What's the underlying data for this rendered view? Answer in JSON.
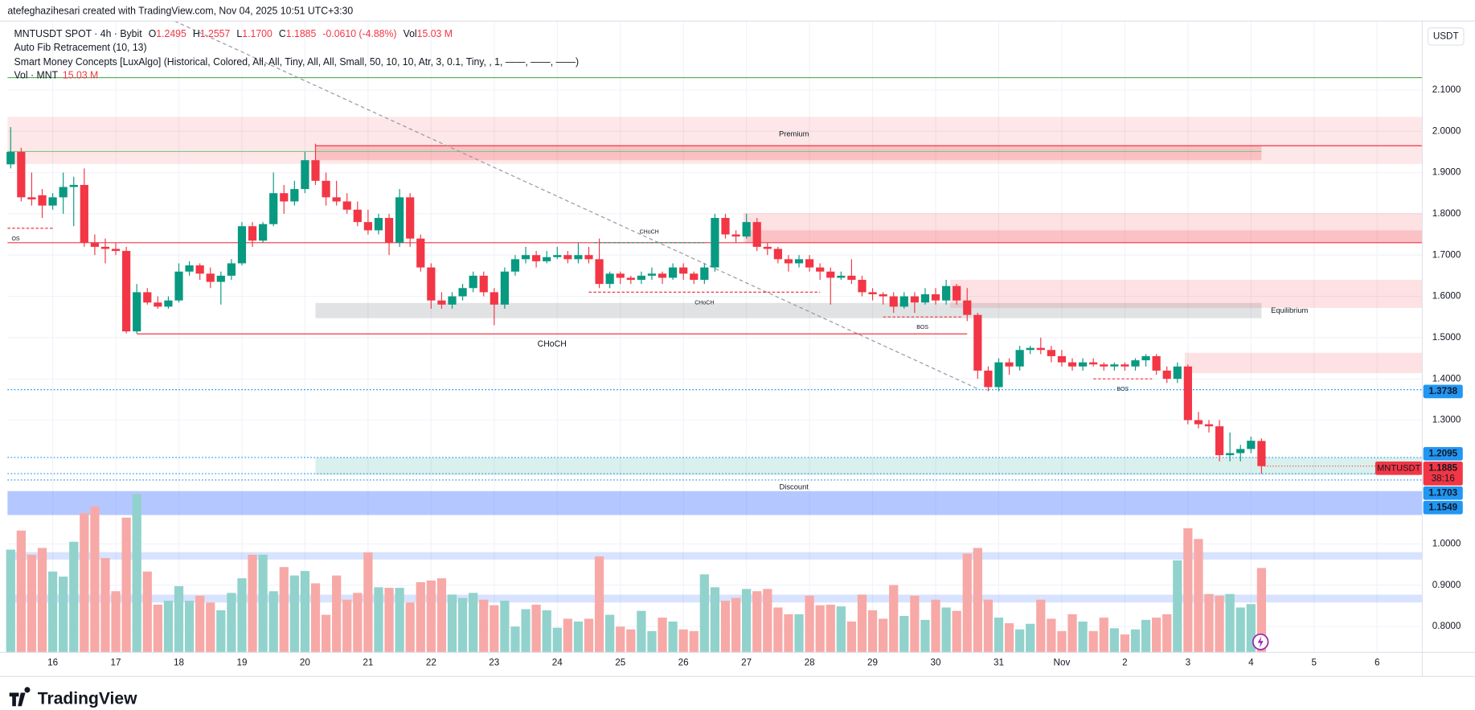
{
  "header": {
    "credit": "atefeghazihesari created with TradingView.com, Nov 04, 2025 10:51 UTC+3:30",
    "symbol": "MNTUSDT SPOT · 4h · Bybit",
    "ohlc": [
      {
        "key": "O",
        "value": "1.2495"
      },
      {
        "key": "H",
        "value": "1.2557"
      },
      {
        "key": "L",
        "value": "1.1700"
      },
      {
        "key": "C",
        "value": "1.1885"
      }
    ],
    "change": "-0.0610 (-4.88%)",
    "vol_key": "Vol",
    "vol_value": "15.03 M",
    "indicators": [
      "Auto Fib Retracement (10, 13)",
      "Smart Money Concepts [LuxAlgo] (Historical, Colored, All, All, Tiny, All, All, Small, 50, 10, 10, Atr, 3, 0.1, Tiny, , 1, ——, ——, ——)"
    ],
    "vol_line": "Vol · MNT",
    "vol_line_value": "15.03 M",
    "currency": "USDT",
    "brand": "TradingView"
  },
  "chart_data": {
    "type": "candlestick",
    "up_color": "#089981",
    "down_color": "#f23645",
    "vol_up_color": "#92d2cc",
    "vol_down_color": "#f7a9a7",
    "grid": true,
    "xlim": [
      -0.3,
      134.3
    ],
    "ylim": [
      0.737,
      2.267
    ],
    "xticks": [
      {
        "value": 4,
        "label": "16"
      },
      {
        "value": 10,
        "label": "17"
      },
      {
        "value": 16,
        "label": "18"
      },
      {
        "value": 22,
        "label": "19"
      },
      {
        "value": 28,
        "label": "20"
      },
      {
        "value": 34,
        "label": "21"
      },
      {
        "value": 40,
        "label": "22"
      },
      {
        "value": 46,
        "label": "23"
      },
      {
        "value": 52,
        "label": "24"
      },
      {
        "value": 58,
        "label": "25"
      },
      {
        "value": 64,
        "label": "26"
      },
      {
        "value": 70,
        "label": "27"
      },
      {
        "value": 76,
        "label": "28"
      },
      {
        "value": 82,
        "label": "29"
      },
      {
        "value": 88,
        "label": "30"
      },
      {
        "value": 94,
        "label": "31"
      },
      {
        "value": 100,
        "label": "Nov"
      },
      {
        "value": 106,
        "label": "2"
      },
      {
        "value": 112,
        "label": "3"
      },
      {
        "value": 118,
        "label": "4"
      },
      {
        "value": 124,
        "label": "5"
      },
      {
        "value": 130,
        "label": "6"
      }
    ],
    "yticks": [
      {
        "value": 0.8,
        "label": "0.8000"
      },
      {
        "value": 0.9,
        "label": "0.9000"
      },
      {
        "value": 1.0,
        "label": "1.0000"
      },
      {
        "value": 1.3,
        "label": "1.3000"
      },
      {
        "value": 1.4,
        "label": "1.4000"
      },
      {
        "value": 1.5,
        "label": "1.5000"
      },
      {
        "value": 1.6,
        "label": "1.6000"
      },
      {
        "value": 1.7,
        "label": "1.7000"
      },
      {
        "value": 1.8,
        "label": "1.8000"
      },
      {
        "value": 1.9,
        "label": "1.9000"
      },
      {
        "value": 2.0,
        "label": "2.0000"
      },
      {
        "value": 2.1,
        "label": "2.1000"
      }
    ],
    "candles": [
      [
        1.92,
        2.01,
        1.91,
        1.95
      ],
      [
        1.95,
        1.96,
        1.83,
        1.84
      ],
      [
        1.84,
        1.9,
        1.82,
        1.835
      ],
      [
        1.845,
        1.86,
        1.79,
        1.82
      ],
      [
        1.82,
        1.85,
        1.81,
        1.84
      ],
      [
        1.84,
        1.9,
        1.8,
        1.865
      ],
      [
        1.865,
        1.89,
        1.77,
        1.87
      ],
      [
        1.87,
        1.91,
        1.72,
        1.73
      ],
      [
        1.73,
        1.75,
        1.7,
        1.72
      ],
      [
        1.72,
        1.74,
        1.68,
        1.715
      ],
      [
        1.715,
        1.73,
        1.7,
        1.71
      ],
      [
        1.71,
        1.72,
        1.51,
        1.515
      ],
      [
        1.515,
        1.63,
        1.51,
        1.61
      ],
      [
        1.61,
        1.62,
        1.58,
        1.585
      ],
      [
        1.585,
        1.6,
        1.57,
        1.575
      ],
      [
        1.575,
        1.6,
        1.57,
        1.59
      ],
      [
        1.59,
        1.68,
        1.585,
        1.66
      ],
      [
        1.66,
        1.685,
        1.65,
        1.675
      ],
      [
        1.675,
        1.68,
        1.64,
        1.655
      ],
      [
        1.655,
        1.67,
        1.62,
        1.635
      ],
      [
        1.635,
        1.66,
        1.58,
        1.65
      ],
      [
        1.65,
        1.69,
        1.64,
        1.68
      ],
      [
        1.68,
        1.78,
        1.675,
        1.77
      ],
      [
        1.77,
        1.78,
        1.72,
        1.735
      ],
      [
        1.735,
        1.78,
        1.73,
        1.775
      ],
      [
        1.775,
        1.9,
        1.77,
        1.85
      ],
      [
        1.85,
        1.87,
        1.8,
        1.83
      ],
      [
        1.83,
        1.88,
        1.82,
        1.86
      ],
      [
        1.86,
        1.95,
        1.85,
        1.93
      ],
      [
        1.93,
        1.97,
        1.87,
        1.88
      ],
      [
        1.88,
        1.9,
        1.82,
        1.84
      ],
      [
        1.84,
        1.88,
        1.82,
        1.83
      ],
      [
        1.83,
        1.85,
        1.8,
        1.81
      ],
      [
        1.81,
        1.83,
        1.77,
        1.78
      ],
      [
        1.78,
        1.81,
        1.75,
        1.76
      ],
      [
        1.76,
        1.8,
        1.75,
        1.79
      ],
      [
        1.79,
        1.8,
        1.7,
        1.73
      ],
      [
        1.73,
        1.86,
        1.72,
        1.84
      ],
      [
        1.84,
        1.85,
        1.72,
        1.74
      ],
      [
        1.74,
        1.75,
        1.66,
        1.67
      ],
      [
        1.67,
        1.68,
        1.57,
        1.59
      ],
      [
        1.59,
        1.61,
        1.57,
        1.58
      ],
      [
        1.58,
        1.61,
        1.57,
        1.6
      ],
      [
        1.6,
        1.63,
        1.59,
        1.62
      ],
      [
        1.62,
        1.66,
        1.61,
        1.65
      ],
      [
        1.65,
        1.66,
        1.6,
        1.61
      ],
      [
        1.61,
        1.62,
        1.53,
        1.58
      ],
      [
        1.58,
        1.67,
        1.57,
        1.66
      ],
      [
        1.66,
        1.7,
        1.65,
        1.69
      ],
      [
        1.69,
        1.72,
        1.68,
        1.7
      ],
      [
        1.7,
        1.71,
        1.67,
        1.685
      ],
      [
        1.685,
        1.71,
        1.68,
        1.695
      ],
      [
        1.695,
        1.72,
        1.69,
        1.7
      ],
      [
        1.7,
        1.71,
        1.68,
        1.69
      ],
      [
        1.69,
        1.73,
        1.68,
        1.7
      ],
      [
        1.7,
        1.72,
        1.68,
        1.69
      ],
      [
        1.69,
        1.74,
        1.62,
        1.63
      ],
      [
        1.63,
        1.66,
        1.62,
        1.655
      ],
      [
        1.655,
        1.66,
        1.63,
        1.645
      ],
      [
        1.645,
        1.65,
        1.63,
        1.64
      ],
      [
        1.64,
        1.66,
        1.63,
        1.65
      ],
      [
        1.65,
        1.67,
        1.64,
        1.655
      ],
      [
        1.655,
        1.66,
        1.63,
        1.645
      ],
      [
        1.645,
        1.68,
        1.64,
        1.67
      ],
      [
        1.67,
        1.68,
        1.64,
        1.655
      ],
      [
        1.655,
        1.66,
        1.63,
        1.64
      ],
      [
        1.64,
        1.68,
        1.63,
        1.67
      ],
      [
        1.67,
        1.8,
        1.66,
        1.79
      ],
      [
        1.79,
        1.8,
        1.74,
        1.75
      ],
      [
        1.75,
        1.76,
        1.73,
        1.745
      ],
      [
        1.745,
        1.8,
        1.74,
        1.78
      ],
      [
        1.78,
        1.79,
        1.71,
        1.72
      ],
      [
        1.72,
        1.73,
        1.7,
        1.715
      ],
      [
        1.715,
        1.72,
        1.68,
        1.69
      ],
      [
        1.69,
        1.7,
        1.66,
        1.68
      ],
      [
        1.68,
        1.7,
        1.67,
        1.69
      ],
      [
        1.69,
        1.7,
        1.66,
        1.67
      ],
      [
        1.67,
        1.68,
        1.64,
        1.66
      ],
      [
        1.66,
        1.67,
        1.58,
        1.645
      ],
      [
        1.645,
        1.66,
        1.64,
        1.65
      ],
      [
        1.65,
        1.69,
        1.63,
        1.64
      ],
      [
        1.64,
        1.65,
        1.6,
        1.61
      ],
      [
        1.61,
        1.62,
        1.59,
        1.605
      ],
      [
        1.605,
        1.61,
        1.58,
        1.6
      ],
      [
        1.6,
        1.61,
        1.56,
        1.575
      ],
      [
        1.575,
        1.61,
        1.57,
        1.6
      ],
      [
        1.6,
        1.61,
        1.56,
        1.585
      ],
      [
        1.585,
        1.62,
        1.58,
        1.605
      ],
      [
        1.605,
        1.62,
        1.58,
        1.59
      ],
      [
        1.59,
        1.64,
        1.58,
        1.625
      ],
      [
        1.625,
        1.63,
        1.58,
        1.59
      ],
      [
        1.59,
        1.62,
        1.54,
        1.555
      ],
      [
        1.555,
        1.56,
        1.4,
        1.42
      ],
      [
        1.42,
        1.43,
        1.37,
        1.38
      ],
      [
        1.38,
        1.45,
        1.37,
        1.44
      ],
      [
        1.44,
        1.45,
        1.41,
        1.43
      ],
      [
        1.43,
        1.48,
        1.42,
        1.47
      ],
      [
        1.47,
        1.48,
        1.46,
        1.475
      ],
      [
        1.475,
        1.5,
        1.46,
        1.47
      ],
      [
        1.47,
        1.48,
        1.44,
        1.455
      ],
      [
        1.455,
        1.47,
        1.43,
        1.44
      ],
      [
        1.44,
        1.45,
        1.42,
        1.43
      ],
      [
        1.43,
        1.45,
        1.42,
        1.44
      ],
      [
        1.44,
        1.45,
        1.43,
        1.435
      ],
      [
        1.435,
        1.44,
        1.42,
        1.43
      ],
      [
        1.43,
        1.44,
        1.42,
        1.435
      ],
      [
        1.435,
        1.44,
        1.42,
        1.43
      ],
      [
        1.43,
        1.45,
        1.42,
        1.445
      ],
      [
        1.445,
        1.46,
        1.43,
        1.455
      ],
      [
        1.455,
        1.46,
        1.41,
        1.42
      ],
      [
        1.42,
        1.43,
        1.39,
        1.4
      ],
      [
        1.4,
        1.44,
        1.39,
        1.43
      ],
      [
        1.43,
        1.435,
        1.29,
        1.3
      ],
      [
        1.3,
        1.32,
        1.28,
        1.29
      ],
      [
        1.29,
        1.3,
        1.27,
        1.285
      ],
      [
        1.285,
        1.3,
        1.2,
        1.215
      ],
      [
        1.215,
        1.27,
        1.2,
        1.22
      ],
      [
        1.22,
        1.24,
        1.2,
        1.23
      ],
      [
        1.23,
        1.26,
        1.22,
        1.25
      ],
      [
        1.2495,
        1.2557,
        1.17,
        1.1885
      ]
    ],
    "volume": [
      18.3,
      21.7,
      17.4,
      18.6,
      14.4,
      13.5,
      19.7,
      24.8,
      26,
      16.8,
      10.9,
      24,
      28.2,
      14.4,
      8.5,
      9.2,
      11.8,
      9.2,
      10.1,
      8.9,
      7.5,
      10.6,
      13.2,
      17.4,
      17.4,
      10.9,
      15.2,
      13.7,
      14.5,
      12.3,
      6.7,
      13.7,
      9.4,
      10.6,
      17.8,
      11.6,
      11.5,
      11.5,
      8.9,
      12.5,
      12.8,
      13.2,
      10.3,
      9.7,
      10.6,
      9.4,
      8.4,
      9.2,
      4.6,
      7.7,
      8.5,
      7.5,
      4.4,
      6.0,
      5.5,
      6.0,
      17.1,
      6.7,
      4.6,
      4.1,
      7.4,
      3.8,
      6.2,
      5.5,
      4.1,
      3.8,
      13.9,
      11.6,
      9.2,
      9.7,
      11.3,
      10.9,
      11.3,
      8.0,
      6.8,
      6.8,
      10.1,
      8.4,
      8.5,
      8.2,
      5.5,
      10.3,
      7.5,
      6.0,
      12.0,
      6.5,
      10.1,
      5.8,
      9.4,
      8.0,
      7.4,
      17.6,
      18.6,
      9.4,
      6.2,
      5.2,
      4.1,
      5.1,
      9.4,
      6.0,
      3.8,
      6.8,
      5.5,
      3.8,
      6.2,
      4.3,
      3.2,
      4.1,
      5.8,
      6.2,
      6.8,
      16.4,
      22.1,
      20.2,
      10.4,
      10.1,
      10.4,
      8.0,
      8.6,
      15.03
    ],
    "zones": [
      {
        "top": 2.035,
        "bottom": 1.921,
        "from": -0.3,
        "to": 134.3,
        "color": "rgba(242,54,69,0.12)",
        "label": "Premium"
      },
      {
        "top": 1.965,
        "bottom": 1.93,
        "from": 29,
        "to": 119,
        "color": "rgba(242,54,69,0.22)"
      },
      {
        "top": 1.802,
        "bottom": 1.73,
        "from": 69.7,
        "to": 134.3,
        "color": "rgba(242,54,69,0.15)"
      },
      {
        "top": 1.76,
        "bottom": 1.73,
        "from": 70,
        "to": 134.3,
        "color": "rgba(242,54,69,0.18)"
      },
      {
        "top": 1.64,
        "bottom": 1.572,
        "from": 89.4,
        "to": 134.3,
        "color": "rgba(242,54,69,0.15)"
      },
      {
        "top": 1.463,
        "bottom": 1.414,
        "from": 111.7,
        "to": 134.3,
        "color": "rgba(242,54,69,0.15)"
      },
      {
        "top": 1.584,
        "bottom": 1.547,
        "from": 29,
        "to": 119,
        "color": "rgba(120,123,134,0.22)",
        "label": "Equilibrium"
      },
      {
        "top": 1.209,
        "bottom": 1.167,
        "from": 29,
        "to": 134.3,
        "color": "rgba(8,153,129,0.15)"
      },
      {
        "top": 1.128,
        "bottom": 1.07,
        "from": -0.3,
        "to": 134.3,
        "color": "rgba(41,98,255,0.35)",
        "label": "Discount"
      },
      {
        "top": 0.98,
        "bottom": 0.962,
        "from": -0.3,
        "to": 134.3,
        "color": "rgba(41,98,255,0.18)"
      },
      {
        "top": 0.877,
        "bottom": 0.858,
        "from": -0.3,
        "to": 134.3,
        "color": "rgba(41,98,255,0.18)"
      }
    ],
    "levels": [
      {
        "price": 2.13,
        "from": -0.3,
        "to": 134.3,
        "color": "#4caf50"
      },
      {
        "price": 1.951,
        "from": -0.3,
        "to": 119,
        "color": "#81c784"
      },
      {
        "price": 1.965,
        "from": 29,
        "to": 134.3,
        "color": "#f23645"
      },
      {
        "price": 1.73,
        "from": -0.3,
        "to": 134.3,
        "color": "#f23645"
      }
    ],
    "structures": [
      {
        "label": "CHoCH",
        "price": 1.509,
        "from": 12,
        "to": 91,
        "color": "#f23645",
        "dashed": false,
        "size": 9
      },
      {
        "label": "CHoCH",
        "price": 1.73,
        "from": 55.5,
        "to": 66,
        "color": "#089981",
        "dashed": true,
        "size": 6
      },
      {
        "label": "CHoCH",
        "price": 1.61,
        "from": 55,
        "to": 77,
        "color": "#f23645",
        "dashed": true,
        "size": 6
      },
      {
        "label": "BOS",
        "price": 1.55,
        "from": 83,
        "to": 90.5,
        "color": "#f23645",
        "dashed": true,
        "size": 6
      },
      {
        "label": "BOS",
        "price": 1.4,
        "from": 103,
        "to": 108.6,
        "color": "#f23645",
        "dashed": true,
        "size": 6
      },
      {
        "label": "OS",
        "price": 1.765,
        "from": -0.3,
        "to": 4,
        "color": "#f23645",
        "dashed": true,
        "size": 6
      }
    ],
    "trendline": {
      "x": [
        15.6,
        92
      ],
      "price": [
        2.267,
        1.376
      ],
      "color": "#9598a1"
    },
    "price_labels": [
      {
        "value": 1.3738,
        "label": "1.3738",
        "color": "#2196f3"
      },
      {
        "value": 1.2095,
        "label": "1.2095",
        "color": "#2196f3"
      },
      {
        "value": 1.1703,
        "label": "1.1703",
        "color": "#2196f3"
      },
      {
        "value": 1.1549,
        "label": "1.1549",
        "color": "#2196f3"
      }
    ],
    "last_price": {
      "symbol": "MNTUSDT",
      "value": 1.1885,
      "label": "1.1885",
      "countdown": "38:16",
      "color": "#f23645"
    }
  }
}
